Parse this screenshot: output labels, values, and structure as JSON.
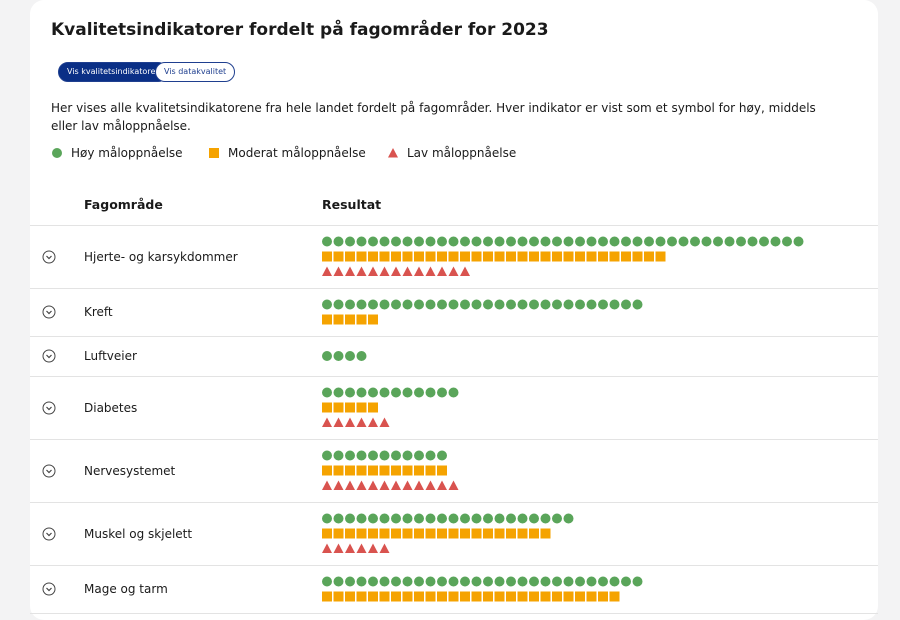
{
  "header": {
    "title": "Kvalitetsindikatorer fordelt på fagområder for 2023"
  },
  "buttons": [
    "Vis kvalitetsindikatorer",
    "Vis datakvalitet"
  ],
  "description": "Her vises alle kvalitetsindikatorene fra hele landet fordelt på fagområder. Hver indikator er vist som et symbol for høy, middels eller lav måloppnåelse.",
  "legend": [
    {
      "label": "Høy måloppnåelse",
      "color": "#5aa55a",
      "shape": "circle"
    },
    {
      "label": "Moderat måloppnåelse",
      "color": "#f5a300",
      "shape": "square"
    },
    {
      "label": "Lav måloppnåelse",
      "color": "#d9534f",
      "shape": "triangle"
    }
  ],
  "table": {
    "headers": [
      "Fagområde",
      "Resultat"
    ],
    "rows": [
      {
        "name": "Hjerte- og karsykdommer",
        "counts": [
          42,
          30,
          13
        ]
      },
      {
        "name": "Kreft",
        "counts": [
          28,
          5,
          0
        ]
      },
      {
        "name": "Luftveier",
        "counts": [
          4,
          0,
          0
        ]
      },
      {
        "name": "Diabetes",
        "counts": [
          12,
          5,
          6
        ]
      },
      {
        "name": "Nervesystemet",
        "counts": [
          11,
          11,
          12
        ]
      },
      {
        "name": "Muskel og skjelett",
        "counts": [
          22,
          20,
          6
        ]
      },
      {
        "name": "Mage og tarm",
        "counts": [
          28,
          26,
          0
        ]
      }
    ]
  }
}
